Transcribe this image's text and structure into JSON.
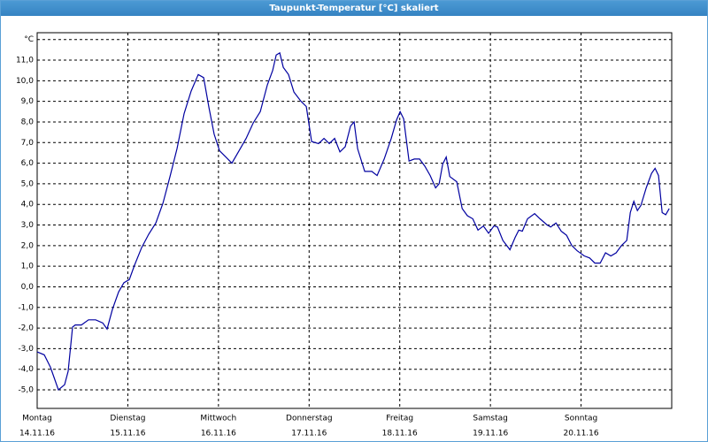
{
  "chart_data": {
    "type": "line",
    "title": "Taupunkt-Temperatur [°C] skaliert",
    "xlim": [
      0,
      7
    ],
    "ylim": [
      -5.9,
      12.33
    ],
    "xticks": [
      {
        "value": 0,
        "label": "Montag"
      },
      {
        "value": 1,
        "label": "Dienstag"
      },
      {
        "value": 2,
        "label": "Mittwoch"
      },
      {
        "value": 3,
        "label": "Donnerstag"
      },
      {
        "value": 4,
        "label": "Freitag"
      },
      {
        "value": 5,
        "label": "Samstag"
      },
      {
        "value": 6,
        "label": "Sonntag"
      }
    ],
    "xtick_dates": [
      "14.11.16",
      "15.11.16",
      "16.11.16",
      "17.11.16",
      "18.11.16",
      "19.11.16",
      "20.11.16"
    ],
    "yticks": [
      {
        "value": -5,
        "label": "-5,0"
      },
      {
        "value": -4,
        "label": "-4,0"
      },
      {
        "value": -3,
        "label": "-3,0"
      },
      {
        "value": -2,
        "label": "-2,0"
      },
      {
        "value": -1,
        "label": "-1,0"
      },
      {
        "value": 0,
        "label": "0,0"
      },
      {
        "value": 1,
        "label": "1,0"
      },
      {
        "value": 2,
        "label": "2,0"
      },
      {
        "value": 3,
        "label": "3,0"
      },
      {
        "value": 4,
        "label": "4,0"
      },
      {
        "value": 5,
        "label": "5,0"
      },
      {
        "value": 6,
        "label": "6,0"
      },
      {
        "value": 7,
        "label": "7,0"
      },
      {
        "value": 8,
        "label": "8,0"
      },
      {
        "value": 9,
        "label": "9,0"
      },
      {
        "value": 10,
        "label": "10,0"
      },
      {
        "value": 11,
        "label": "11,0"
      },
      {
        "value": 12,
        "label": "°C"
      }
    ],
    "grid": true,
    "series": [
      {
        "color": "#0000a0",
        "x": [
          0,
          0.078,
          0.146,
          0.234,
          0.303,
          0.342,
          0.391,
          0.42,
          0.488,
          0.566,
          0.645,
          0.723,
          0.771,
          0.83,
          0.898,
          0.957,
          1.016,
          1.074,
          1.152,
          1.23,
          1.309,
          1.387,
          1.465,
          1.543,
          1.621,
          1.699,
          1.777,
          1.836,
          1.895,
          1.953,
          2.012,
          2.07,
          2.148,
          2.227,
          2.305,
          2.383,
          2.461,
          2.539,
          2.598,
          2.637,
          2.676,
          2.715,
          2.773,
          2.832,
          2.91,
          2.969,
          3.027,
          3.105,
          3.164,
          3.223,
          3.281,
          3.34,
          3.398,
          3.457,
          3.496,
          3.535,
          3.613,
          3.691,
          3.75,
          3.828,
          3.906,
          3.965,
          4.004,
          4.043,
          4.102,
          4.16,
          4.219,
          4.277,
          4.336,
          4.395,
          4.434,
          4.473,
          4.512,
          4.551,
          4.629,
          4.688,
          4.746,
          4.805,
          4.863,
          4.922,
          4.98,
          5.039,
          5.078,
          5.137,
          5.215,
          5.273,
          5.313,
          5.352,
          5.41,
          5.488,
          5.547,
          5.625,
          5.664,
          5.723,
          5.781,
          5.84,
          5.898,
          5.957,
          6.035,
          6.094,
          6.152,
          6.211,
          6.27,
          6.328,
          6.387,
          6.445,
          6.504,
          6.543,
          6.582,
          6.621,
          6.66,
          6.719,
          6.777,
          6.816,
          6.855,
          6.895,
          6.934,
          6.973
        ],
        "values": [
          -3.16,
          -3.3,
          -3.9,
          -5.0,
          -4.75,
          -4.1,
          -1.95,
          -1.85,
          -1.85,
          -1.6,
          -1.6,
          -1.75,
          -2.05,
          -1.1,
          -0.25,
          0.2,
          0.35,
          1.05,
          1.9,
          2.55,
          3.1,
          4.05,
          5.35,
          6.7,
          8.4,
          9.5,
          10.3,
          10.15,
          8.7,
          7.4,
          6.6,
          6.35,
          6.0,
          6.6,
          7.2,
          7.95,
          8.5,
          9.8,
          10.5,
          11.25,
          11.35,
          10.65,
          10.3,
          9.45,
          9.0,
          8.75,
          7.05,
          6.95,
          7.2,
          6.95,
          7.2,
          6.55,
          6.8,
          7.8,
          8.0,
          6.7,
          5.6,
          5.6,
          5.4,
          6.2,
          7.2,
          8.1,
          8.5,
          8.15,
          6.1,
          6.2,
          6.2,
          5.85,
          5.4,
          4.8,
          5.0,
          5.95,
          6.3,
          5.35,
          5.1,
          3.8,
          3.45,
          3.3,
          2.75,
          2.95,
          2.6,
          2.95,
          2.9,
          2.25,
          1.8,
          2.4,
          2.75,
          2.7,
          3.3,
          3.55,
          3.3,
          3.0,
          2.9,
          3.1,
          2.7,
          2.5,
          2.0,
          1.75,
          1.5,
          1.4,
          1.15,
          1.15,
          1.65,
          1.5,
          1.65,
          2.0,
          2.25,
          3.6,
          4.15,
          3.7,
          3.95,
          4.8,
          5.5,
          5.75,
          5.4,
          3.6,
          3.5,
          3.8
        ]
      }
    ]
  }
}
